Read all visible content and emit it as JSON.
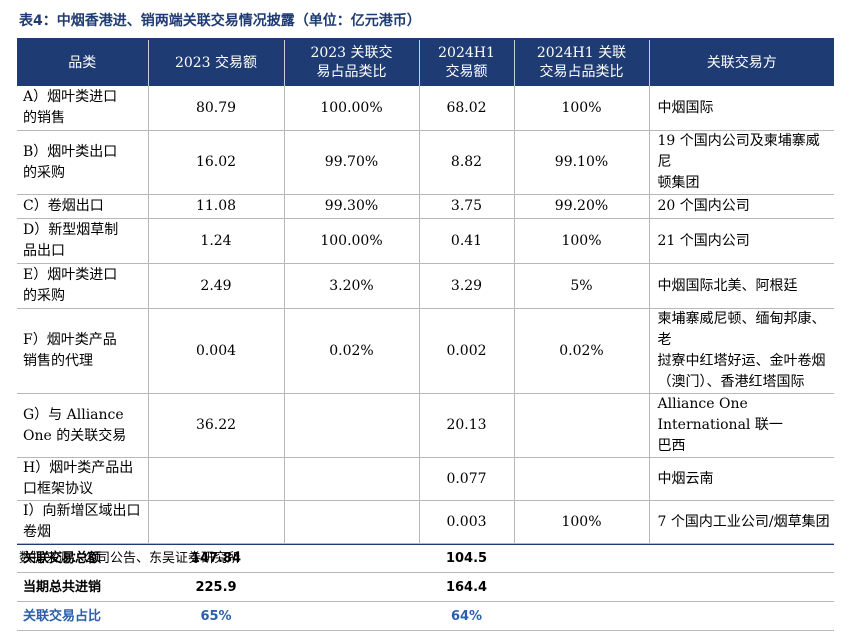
{
  "title": "表4：中烟香港进、销两端关联交易情况披露（单位：亿元港币）",
  "headers": [
    "品类",
    "2023 交易额",
    "2023 关联交易占品类比",
    "2024H1 交易额",
    "2024H1 关联交易占品类比",
    "关联交易方"
  ],
  "header_lines": {
    "h0": [
      "品类"
    ],
    "h1": [
      "2023 交易额"
    ],
    "h2": [
      "2023 关联交",
      "易占品类比"
    ],
    "h3": [
      "2024H1",
      "交易额"
    ],
    "h4": [
      "2024H1 关联",
      "交易占品类比"
    ],
    "h5": [
      "关联交易方"
    ]
  },
  "rows": [
    {
      "cat": [
        "A）烟叶类进口",
        "的销售"
      ],
      "v2023": "80.79",
      "r2023": "100.00%",
      "v2024": "68.02",
      "r2024": "100%",
      "party": [
        "中烟国际"
      ]
    },
    {
      "cat": [
        "B）烟叶类出口",
        "的采购"
      ],
      "v2023": "16.02",
      "r2023": "99.70%",
      "v2024": "8.82",
      "r2024": "99.10%",
      "party": [
        "19 个国内公司及柬埔寨威尼",
        "顿集团"
      ]
    },
    {
      "cat": [
        "C）卷烟出口"
      ],
      "v2023": "11.08",
      "r2023": "99.30%",
      "v2024": "3.75",
      "r2024": "99.20%",
      "party": [
        "20 个国内公司"
      ]
    },
    {
      "cat": [
        "D）新型烟草制",
        "品出口"
      ],
      "v2023": "1.24",
      "r2023": "100.00%",
      "v2024": "0.41",
      "r2024": "100%",
      "party": [
        "21 个国内公司"
      ]
    },
    {
      "cat": [
        "E）烟叶类进口",
        "的采购"
      ],
      "v2023": "2.49",
      "r2023": "3.20%",
      "v2024": "3.29",
      "r2024": "5%",
      "party": [
        "中烟国际北美、阿根廷"
      ]
    },
    {
      "cat": [
        "F）烟叶类产品",
        "销售的代理"
      ],
      "v2023": "0.004",
      "r2023": "0.02%",
      "v2024": "0.002",
      "r2024": "0.02%",
      "party": [
        "柬埔寨威尼顿、缅甸邦康、老",
        "挝寮中红塔好运、金叶卷烟",
        "（澳门）、香港红塔国际"
      ]
    },
    {
      "cat": [
        "G）与 Alliance",
        "One 的关联交易"
      ],
      "v2023": "36.22",
      "r2023": "",
      "v2024": "20.13",
      "r2024": "",
      "party": [
        "Alliance One International 联一",
        "巴西"
      ]
    },
    {
      "cat": [
        "H）烟叶类产品出口框架协议"
      ],
      "v2023": "",
      "r2023": "",
      "v2024": "0.077",
      "r2024": "",
      "party": [
        "中烟云南"
      ]
    },
    {
      "cat": [
        "I）向新增区域出口卷烟"
      ],
      "v2023": "",
      "r2023": "",
      "v2024": "0.003",
      "r2024": "100%",
      "party": [
        "7 个国内工业公司/烟草集团"
      ]
    }
  ],
  "totals": [
    {
      "label": "关联交易总额",
      "v2023": "147.84",
      "v2024": "104.5",
      "style": "sum"
    },
    {
      "label": "当期总共进销",
      "v2023": "225.9",
      "v2024": "164.4",
      "style": "sum"
    },
    {
      "label": "关联交易占比",
      "v2023": "65%",
      "v2024": "64%",
      "style": "ratio"
    }
  ],
  "source": "数据来源：公司公告、东吴证券研究所",
  "colors": {
    "header_bg": "#1f3b73",
    "ratio_text": "#2b5faa"
  }
}
